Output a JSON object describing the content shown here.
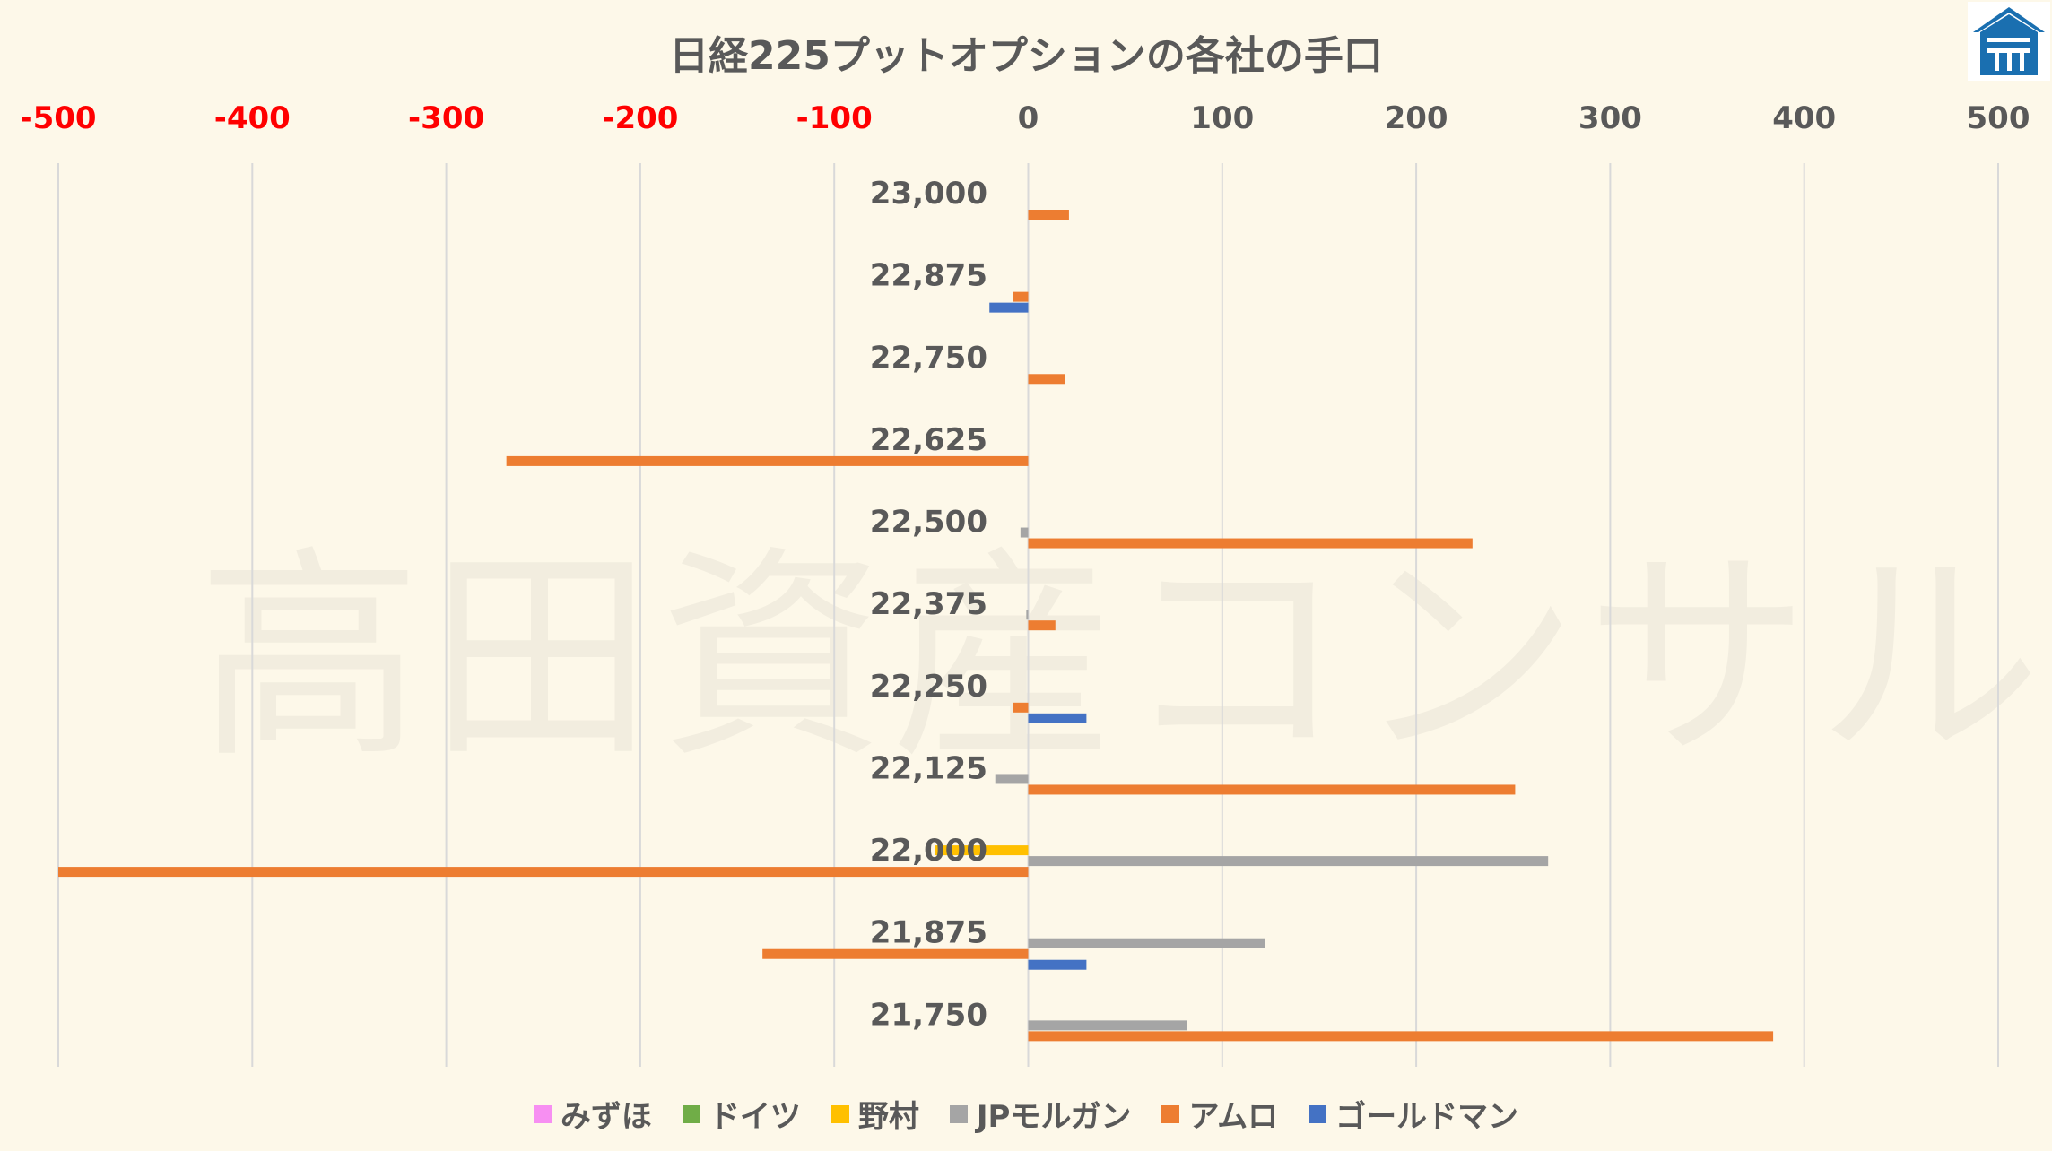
{
  "chart_data": {
    "type": "bar",
    "orientation": "horizontal",
    "title": "日経225プットオプションの各社の手口",
    "watermark": "高田資産コンサル",
    "xlim": [
      -500,
      500
    ],
    "x_ticks": [
      -500,
      -400,
      -300,
      -200,
      -100,
      0,
      100,
      200,
      300,
      400,
      500
    ],
    "negative_tick_color": "#ff0000",
    "positive_tick_color": "#595959",
    "grid": true,
    "legend_position": "bottom",
    "categories": [
      "23,000",
      "22,875",
      "22,750",
      "22,625",
      "22,500",
      "22,375",
      "22,250",
      "22,125",
      "22,000",
      "21,875",
      "21,750"
    ],
    "series": [
      {
        "name": "みずほ",
        "color": "#f78ff2",
        "values": [
          0,
          0,
          0,
          0,
          0,
          0,
          0,
          0,
          0,
          0,
          0
        ]
      },
      {
        "name": "ドイツ",
        "color": "#70ad47",
        "values": [
          0,
          0,
          0,
          0,
          0,
          0,
          0,
          0,
          0,
          0,
          0
        ]
      },
      {
        "name": "野村",
        "color": "#ffc000",
        "values": [
          0,
          0,
          0,
          0,
          0,
          0,
          0,
          0,
          -48,
          0,
          0
        ]
      },
      {
        "name": "JPモルガン",
        "color": "#a5a5a5",
        "values": [
          0,
          0,
          0,
          0,
          -4,
          -1,
          0,
          -17,
          268,
          122,
          82
        ]
      },
      {
        "name": "アムロ",
        "color": "#ed7d31",
        "values": [
          21,
          -8,
          19,
          -269,
          229,
          14,
          -8,
          251,
          -500,
          -137,
          384
        ]
      },
      {
        "name": "ゴールドマン",
        "color": "#4472c4",
        "values": [
          0,
          -20,
          0,
          0,
          0,
          0,
          30,
          0,
          0,
          30,
          0
        ]
      }
    ]
  },
  "logo": {
    "name": "takada-logo-icon",
    "color": "#1a6fb0"
  }
}
